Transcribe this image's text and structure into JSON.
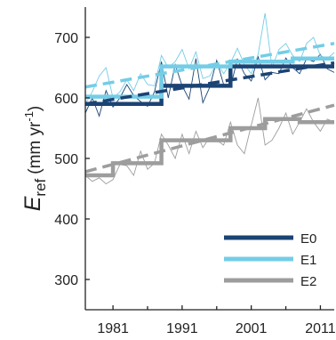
{
  "chart_data": {
    "type": "line",
    "ylabel": {
      "main": "E",
      "sub": "ref",
      "units_pre": "(mm yr",
      "units_sup": "-1",
      "units_post": ")"
    },
    "xlim": [
      1977,
      2013
    ],
    "ylim": [
      250,
      750
    ],
    "xticks": [
      1981,
      1991,
      2001,
      2011
    ],
    "yticks": [
      300,
      400,
      500,
      600,
      700
    ],
    "grid": false,
    "legend_position": "bottom-right",
    "series": [
      {
        "name": "E0",
        "color": "#1b4374",
        "annual": [
          [
            1977,
            575
          ],
          [
            1978,
            600
          ],
          [
            1979,
            570
          ],
          [
            1980,
            612
          ],
          [
            1981,
            585
          ],
          [
            1982,
            600
          ],
          [
            1983,
            622
          ],
          [
            1984,
            604
          ],
          [
            1985,
            594
          ],
          [
            1986,
            586
          ],
          [
            1987,
            610
          ],
          [
            1988,
            660
          ],
          [
            1989,
            600
          ],
          [
            1990,
            655
          ],
          [
            1991,
            620
          ],
          [
            1992,
            598
          ],
          [
            1993,
            665
          ],
          [
            1994,
            592
          ],
          [
            1995,
            618
          ],
          [
            1996,
            662
          ],
          [
            1997,
            622
          ],
          [
            1998,
            618
          ],
          [
            1999,
            664
          ],
          [
            2000,
            640
          ],
          [
            2001,
            628
          ],
          [
            2002,
            668
          ],
          [
            2003,
            630
          ],
          [
            2004,
            642
          ],
          [
            2005,
            640
          ],
          [
            2006,
            666
          ],
          [
            2007,
            650
          ],
          [
            2008,
            640
          ],
          [
            2009,
            665
          ],
          [
            2010,
            660
          ],
          [
            2011,
            672
          ],
          [
            2012,
            648
          ],
          [
            2013,
            642
          ]
        ],
        "step": [
          [
            1977,
            1988,
            590
          ],
          [
            1988,
            1998,
            620
          ],
          [
            1998,
            2013,
            652
          ]
        ],
        "trend": [
          [
            1977,
            590
          ],
          [
            2013,
            658
          ]
        ]
      },
      {
        "name": "E1",
        "color": "#74cde6",
        "annual": [
          [
            1977,
            590
          ],
          [
            1978,
            610
          ],
          [
            1979,
            636
          ],
          [
            1980,
            650
          ],
          [
            1981,
            600
          ],
          [
            1982,
            610
          ],
          [
            1983,
            630
          ],
          [
            1984,
            612
          ],
          [
            1985,
            640
          ],
          [
            1986,
            622
          ],
          [
            1987,
            620
          ],
          [
            1988,
            670
          ],
          [
            1989,
            650
          ],
          [
            1990,
            660
          ],
          [
            1991,
            680
          ],
          [
            1992,
            648
          ],
          [
            1993,
            676
          ],
          [
            1994,
            632
          ],
          [
            1995,
            636
          ],
          [
            1996,
            658
          ],
          [
            1997,
            640
          ],
          [
            1998,
            658
          ],
          [
            1999,
            682
          ],
          [
            2000,
            655
          ],
          [
            2001,
            640
          ],
          [
            2002,
            672
          ],
          [
            2003,
            740
          ],
          [
            2004,
            650
          ],
          [
            2005,
            680
          ],
          [
            2006,
            690
          ],
          [
            2007,
            670
          ],
          [
            2008,
            660
          ],
          [
            2009,
            690
          ],
          [
            2010,
            700
          ],
          [
            2011,
            670
          ],
          [
            2012,
            665
          ],
          [
            2013,
            675
          ]
        ],
        "step": [
          [
            1977,
            1988,
            602
          ],
          [
            1988,
            1998,
            652
          ],
          [
            1998,
            2007,
            660
          ],
          [
            2007,
            2013,
            665
          ]
        ],
        "trend": [
          [
            1977,
            618
          ],
          [
            2013,
            690
          ]
        ]
      },
      {
        "name": "E2",
        "color": "#9d9d9d",
        "annual": [
          [
            1977,
            472
          ],
          [
            1978,
            462
          ],
          [
            1979,
            468
          ],
          [
            1980,
            458
          ],
          [
            1981,
            465
          ],
          [
            1982,
            490
          ],
          [
            1983,
            488
          ],
          [
            1984,
            472
          ],
          [
            1985,
            512
          ],
          [
            1986,
            482
          ],
          [
            1987,
            492
          ],
          [
            1988,
            540
          ],
          [
            1989,
            522
          ],
          [
            1990,
            500
          ],
          [
            1991,
            540
          ],
          [
            1992,
            508
          ],
          [
            1993,
            545
          ],
          [
            1994,
            518
          ],
          [
            1995,
            535
          ],
          [
            1996,
            530
          ],
          [
            1997,
            522
          ],
          [
            1998,
            560
          ],
          [
            1999,
            522
          ],
          [
            2000,
            508
          ],
          [
            2001,
            555
          ],
          [
            2002,
            600
          ],
          [
            2003,
            522
          ],
          [
            2004,
            530
          ],
          [
            2005,
            550
          ],
          [
            2006,
            575
          ],
          [
            2007,
            540
          ],
          [
            2008,
            560
          ],
          [
            2009,
            582
          ],
          [
            2010,
            560
          ],
          [
            2011,
            545
          ],
          [
            2012,
            565
          ],
          [
            2013,
            560
          ]
        ],
        "step": [
          [
            1977,
            1981,
            472
          ],
          [
            1981,
            1988,
            492
          ],
          [
            1988,
            1998,
            530
          ],
          [
            1998,
            2003,
            550
          ],
          [
            2003,
            2008,
            565
          ],
          [
            2008,
            2013,
            560
          ]
        ],
        "trend": [
          [
            1977,
            478
          ],
          [
            2013,
            588
          ]
        ]
      }
    ]
  }
}
